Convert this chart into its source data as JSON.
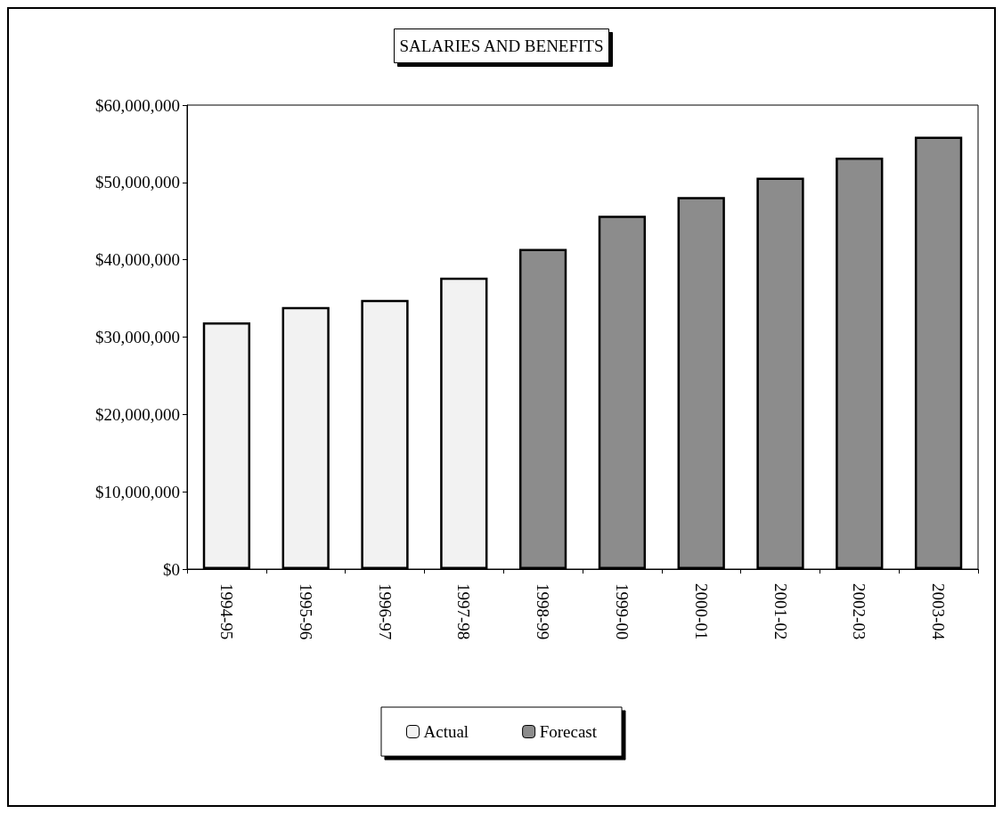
{
  "chart_data": {
    "type": "bar",
    "title": "SALARIES AND BENEFITS",
    "categories": [
      "1994-95",
      "1995-96",
      "1996-97",
      "1997-98",
      "1998-99",
      "1999-00",
      "2000-01",
      "2001-02",
      "2002-03",
      "2003-04"
    ],
    "series": [
      {
        "name": "Actual",
        "color": "#f2f2f2",
        "values": [
          31900000,
          33900000,
          34800000,
          37700000,
          null,
          null,
          null,
          null,
          null,
          null
        ]
      },
      {
        "name": "Forecast",
        "color": "#8c8c8c",
        "values": [
          null,
          null,
          null,
          null,
          41400000,
          45700000,
          48100000,
          50600000,
          53200000,
          55900000
        ]
      }
    ],
    "ylim": [
      0,
      60000000
    ],
    "yticks": [
      {
        "value": 0,
        "label": "$0"
      },
      {
        "value": 10000000,
        "label": "$10,000,000"
      },
      {
        "value": 20000000,
        "label": "$20,000,000"
      },
      {
        "value": 30000000,
        "label": "$30,000,000"
      },
      {
        "value": 40000000,
        "label": "$40,000,000"
      },
      {
        "value": 50000000,
        "label": "$50,000,000"
      },
      {
        "value": 60000000,
        "label": "$60,000,000"
      }
    ],
    "grid": false,
    "legend": "bottom"
  }
}
